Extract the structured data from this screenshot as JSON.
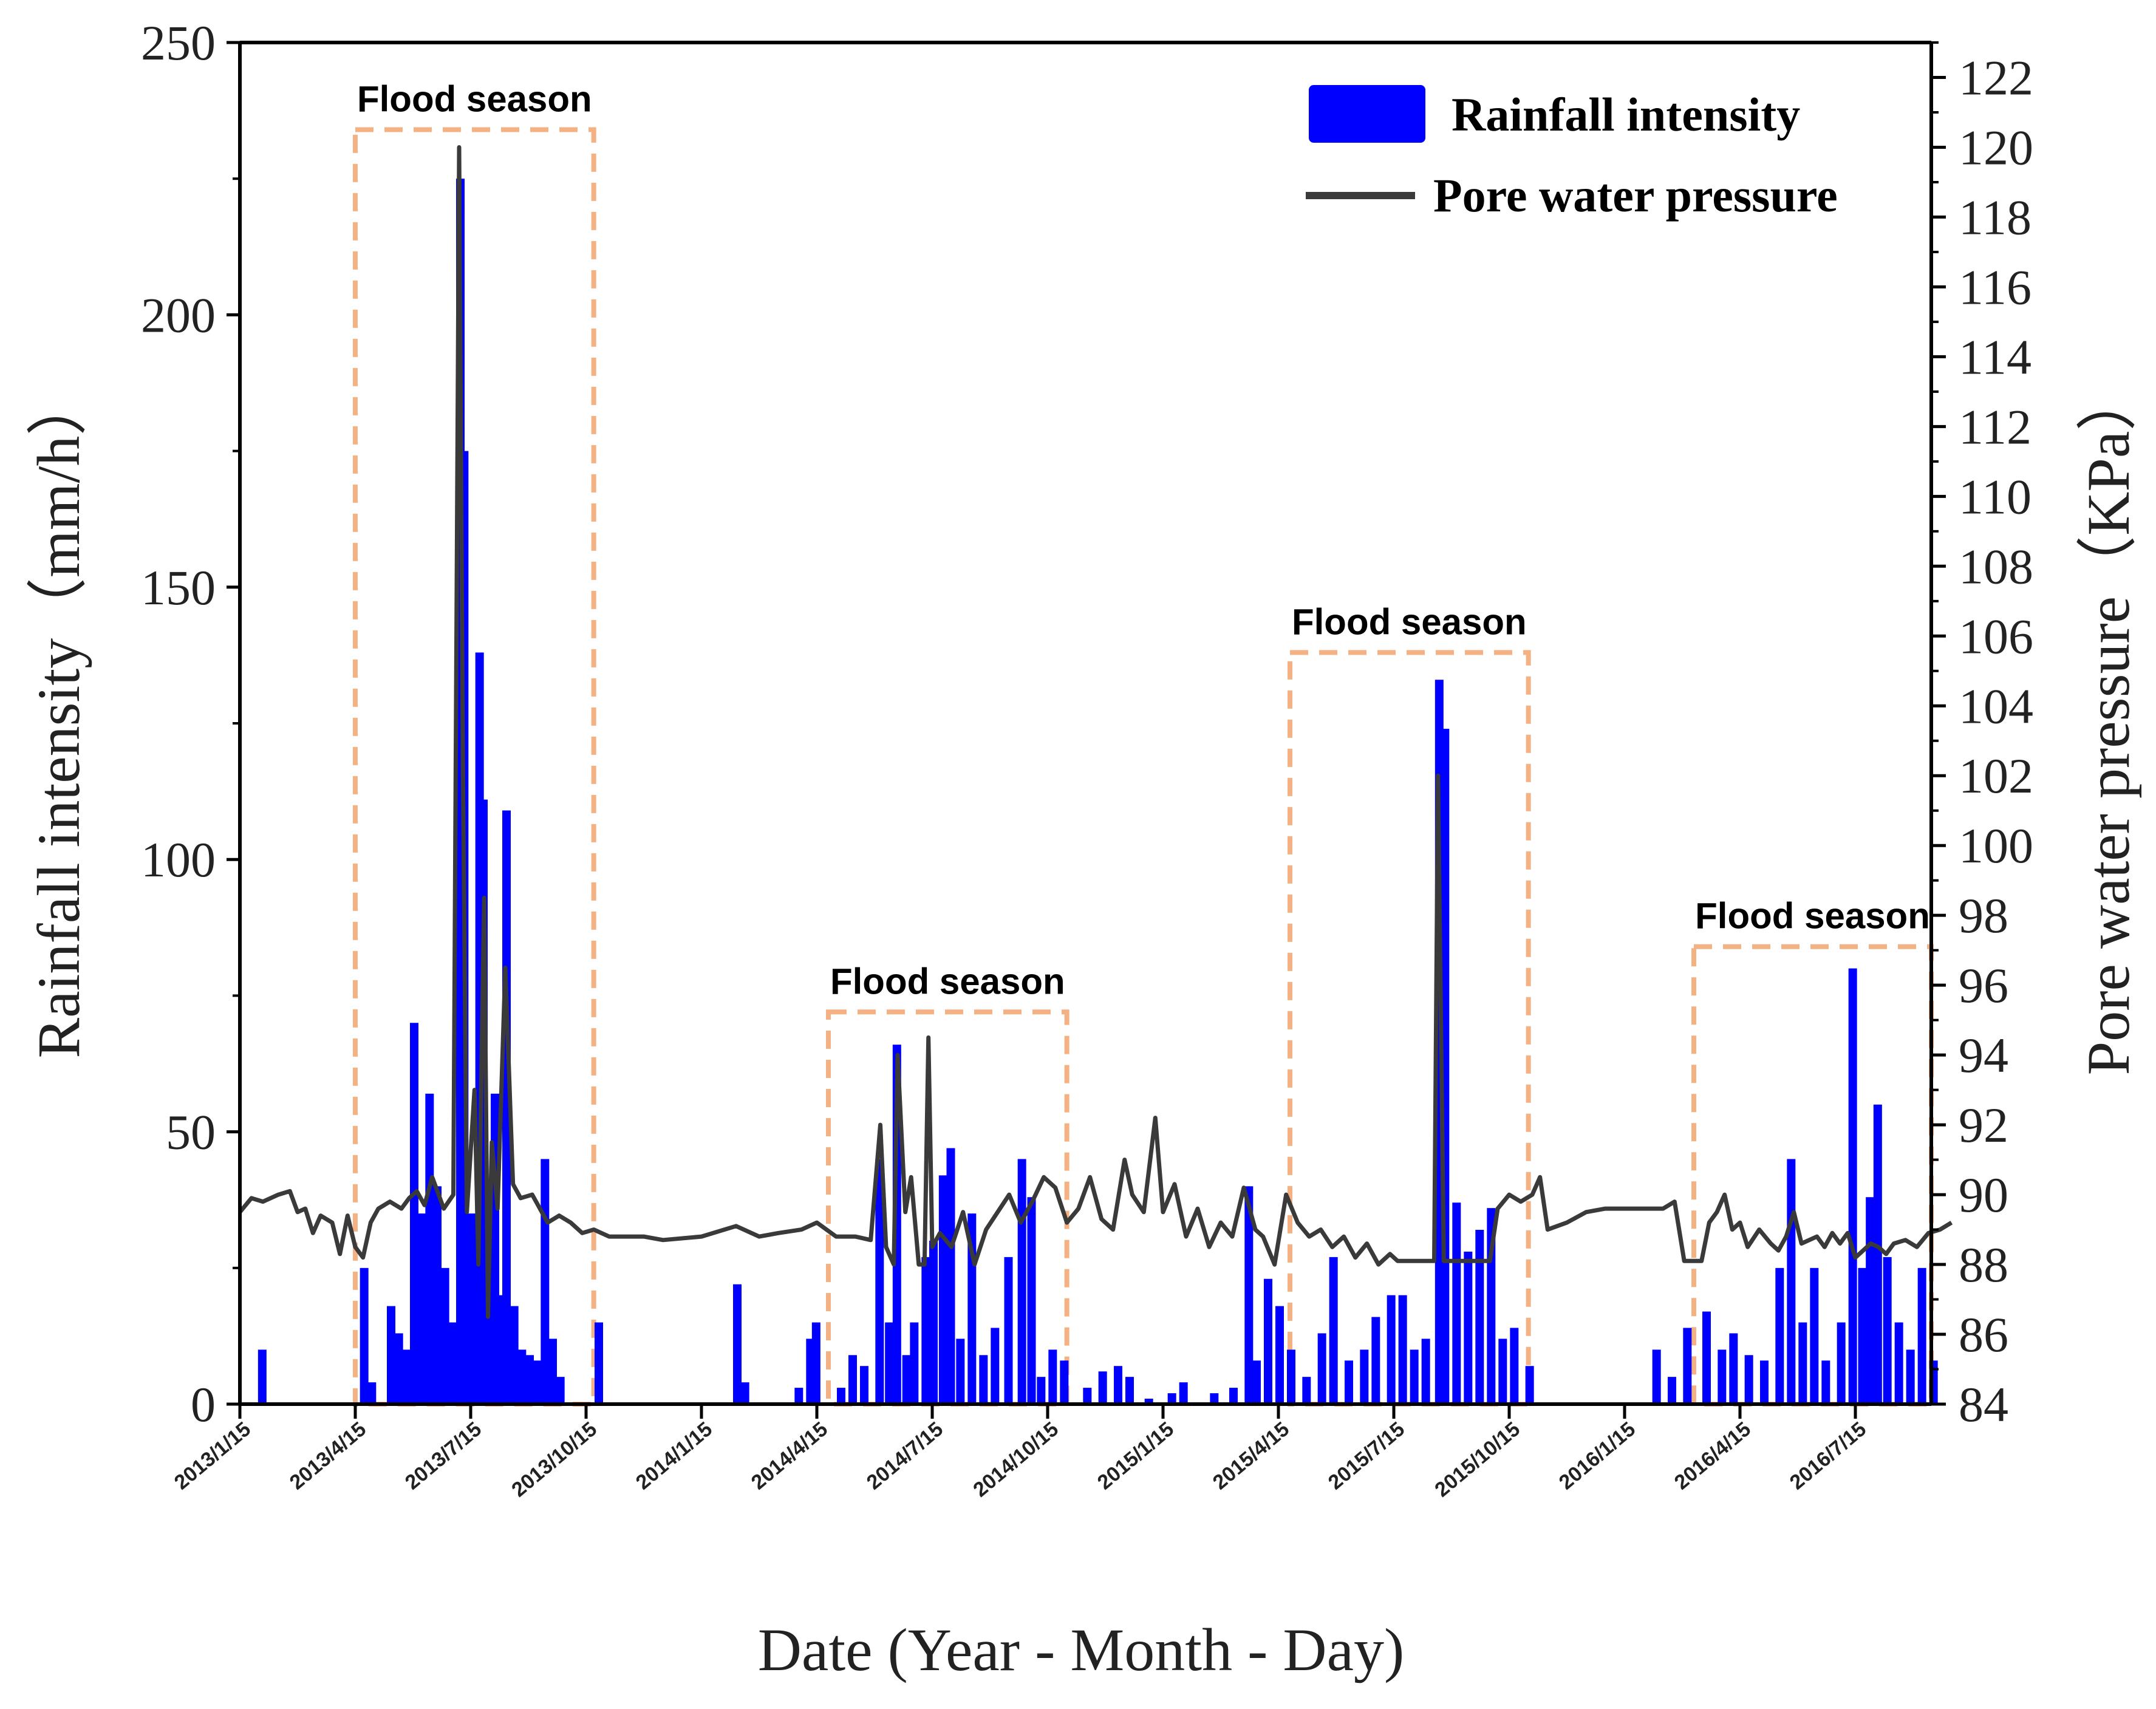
{
  "chart_data": {
    "type": "bar",
    "title": "",
    "xlabel": "Date (Year - Month - Day)",
    "ylabel": "Rainfall intensity（mm/h）",
    "y2label": "Pore water pressure（KPa）",
    "x_tick_labels": [
      "2013/1/15",
      "2013/4/15",
      "2013/7/15",
      "2013/10/15",
      "2014/1/15",
      "2014/4/15",
      "2014/7/15",
      "2014/10/15",
      "2015/1/15",
      "2015/4/15",
      "2015/7/15",
      "2015/10/15",
      "2016/1/15",
      "2016/4/15",
      "2016/7/15"
    ],
    "x_range_months": [
      0,
      44.5
    ],
    "ylim": [
      0,
      250
    ],
    "y_ticks": [
      0,
      50,
      100,
      150,
      200,
      250
    ],
    "y2lim": [
      84,
      123
    ],
    "y2_ticks": [
      84,
      86,
      88,
      90,
      92,
      94,
      96,
      98,
      100,
      102,
      104,
      106,
      108,
      110,
      112,
      114,
      116,
      118,
      120,
      122
    ],
    "legend": {
      "position": "top-right",
      "entries": [
        {
          "label": "Rainfall intensity",
          "kind": "bar",
          "color": "#0000ff"
        },
        {
          "label": "Pore water pressure",
          "kind": "line",
          "color": "#3a3a3a"
        }
      ]
    },
    "flood_seasons": [
      {
        "label": "Flood season",
        "start_month": 3.0,
        "end_month": 9.2,
        "top_value": 234
      },
      {
        "label": "Flood season",
        "start_month": 15.3,
        "end_month": 21.5,
        "top_value": 72
      },
      {
        "label": "Flood season",
        "start_month": 27.3,
        "end_month": 33.5,
        "top_value": 138
      },
      {
        "label": "Flood season",
        "start_month": 37.8,
        "end_month": 44.5,
        "top_value": 84
      }
    ],
    "colors": {
      "rain": "#0000ff",
      "pressure": "#3a3a3a",
      "flood_box": "#f4b183",
      "axis": "#000000"
    },
    "series": [
      {
        "name": "Rainfall intensity",
        "unit": "mm/h",
        "points": [
          [
            0.55,
            10
          ],
          [
            3.2,
            25
          ],
          [
            3.4,
            4
          ],
          [
            3.9,
            18
          ],
          [
            4.1,
            13
          ],
          [
            4.3,
            10
          ],
          [
            4.5,
            70
          ],
          [
            4.7,
            35
          ],
          [
            4.9,
            57
          ],
          [
            5.1,
            40
          ],
          [
            5.3,
            25
          ],
          [
            5.5,
            15
          ],
          [
            5.7,
            225
          ],
          [
            5.8,
            175
          ],
          [
            6.0,
            35
          ],
          [
            6.2,
            138
          ],
          [
            6.3,
            111
          ],
          [
            6.45,
            25
          ],
          [
            6.6,
            57
          ],
          [
            6.8,
            20
          ],
          [
            6.9,
            109
          ],
          [
            7.1,
            18
          ],
          [
            7.3,
            10
          ],
          [
            7.5,
            9
          ],
          [
            7.7,
            8
          ],
          [
            7.9,
            45
          ],
          [
            8.1,
            12
          ],
          [
            8.3,
            5
          ],
          [
            9.3,
            15
          ],
          [
            12.9,
            22
          ],
          [
            13.1,
            4
          ],
          [
            14.5,
            3
          ],
          [
            14.8,
            12
          ],
          [
            14.95,
            15
          ],
          [
            15.6,
            3
          ],
          [
            15.9,
            9
          ],
          [
            16.2,
            7
          ],
          [
            16.6,
            45
          ],
          [
            16.85,
            15
          ],
          [
            17.05,
            66
          ],
          [
            17.3,
            9
          ],
          [
            17.5,
            15
          ],
          [
            17.8,
            27
          ],
          [
            18.0,
            30
          ],
          [
            18.25,
            42
          ],
          [
            18.45,
            47
          ],
          [
            18.7,
            12
          ],
          [
            19.0,
            35
          ],
          [
            19.3,
            9
          ],
          [
            19.6,
            14
          ],
          [
            19.95,
            27
          ],
          [
            20.3,
            45
          ],
          [
            20.55,
            38
          ],
          [
            20.8,
            5
          ],
          [
            21.1,
            10
          ],
          [
            21.4,
            8
          ],
          [
            22.0,
            3
          ],
          [
            22.4,
            6
          ],
          [
            22.8,
            7
          ],
          [
            23.1,
            5
          ],
          [
            23.6,
            1
          ],
          [
            24.2,
            2
          ],
          [
            24.5,
            4
          ],
          [
            25.3,
            2
          ],
          [
            25.8,
            3
          ],
          [
            26.2,
            40
          ],
          [
            26.4,
            8
          ],
          [
            26.7,
            23
          ],
          [
            27.0,
            18
          ],
          [
            27.3,
            10
          ],
          [
            27.7,
            5
          ],
          [
            28.1,
            13
          ],
          [
            28.4,
            27
          ],
          [
            28.8,
            8
          ],
          [
            29.2,
            10
          ],
          [
            29.5,
            16
          ],
          [
            29.9,
            20
          ],
          [
            30.2,
            20
          ],
          [
            30.5,
            10
          ],
          [
            30.8,
            12
          ],
          [
            31.15,
            133
          ],
          [
            31.3,
            124
          ],
          [
            31.6,
            37
          ],
          [
            31.9,
            28
          ],
          [
            32.2,
            32
          ],
          [
            32.5,
            36
          ],
          [
            32.8,
            12
          ],
          [
            33.1,
            14
          ],
          [
            33.5,
            7
          ],
          [
            36.8,
            10
          ],
          [
            37.2,
            5
          ],
          [
            37.6,
            14
          ],
          [
            38.1,
            17
          ],
          [
            38.5,
            10
          ],
          [
            38.8,
            13
          ],
          [
            39.2,
            9
          ],
          [
            39.6,
            8
          ],
          [
            40.0,
            25
          ],
          [
            40.3,
            45
          ],
          [
            40.6,
            15
          ],
          [
            40.9,
            25
          ],
          [
            41.2,
            8
          ],
          [
            41.6,
            15
          ],
          [
            41.9,
            80
          ],
          [
            42.15,
            25
          ],
          [
            42.35,
            38
          ],
          [
            42.55,
            55
          ],
          [
            42.8,
            27
          ],
          [
            43.1,
            15
          ],
          [
            43.4,
            10
          ],
          [
            43.7,
            25
          ],
          [
            44.0,
            8
          ]
        ]
      },
      {
        "name": "Pore water pressure",
        "unit": "KPa",
        "points": [
          [
            0.0,
            89.5
          ],
          [
            0.3,
            89.9
          ],
          [
            0.6,
            89.8
          ],
          [
            1.0,
            90.0
          ],
          [
            1.3,
            90.1
          ],
          [
            1.5,
            89.5
          ],
          [
            1.7,
            89.6
          ],
          [
            1.9,
            88.9
          ],
          [
            2.1,
            89.4
          ],
          [
            2.4,
            89.2
          ],
          [
            2.6,
            88.3
          ],
          [
            2.8,
            89.4
          ],
          [
            3.0,
            88.5
          ],
          [
            3.2,
            88.2
          ],
          [
            3.4,
            89.2
          ],
          [
            3.6,
            89.6
          ],
          [
            3.9,
            89.8
          ],
          [
            4.2,
            89.6
          ],
          [
            4.4,
            89.9
          ],
          [
            4.6,
            90.1
          ],
          [
            4.8,
            89.7
          ],
          [
            5.0,
            90.5
          ],
          [
            5.3,
            89.6
          ],
          [
            5.55,
            90.0
          ],
          [
            5.7,
            120.0
          ],
          [
            5.8,
            102.0
          ],
          [
            5.9,
            89.5
          ],
          [
            6.1,
            93.0
          ],
          [
            6.2,
            88.0
          ],
          [
            6.35,
            98.5
          ],
          [
            6.45,
            86.5
          ],
          [
            6.55,
            91.5
          ],
          [
            6.7,
            89.6
          ],
          [
            6.9,
            96.5
          ],
          [
            7.1,
            90.3
          ],
          [
            7.3,
            89.9
          ],
          [
            7.6,
            90.0
          ],
          [
            7.8,
            89.6
          ],
          [
            8.0,
            89.2
          ],
          [
            8.3,
            89.4
          ],
          [
            8.6,
            89.2
          ],
          [
            8.9,
            88.9
          ],
          [
            9.2,
            89.0
          ],
          [
            9.6,
            88.8
          ],
          [
            10.5,
            88.8
          ],
          [
            11.0,
            88.7
          ],
          [
            12.0,
            88.8
          ],
          [
            12.9,
            89.1
          ],
          [
            13.5,
            88.8
          ],
          [
            14.0,
            88.9
          ],
          [
            14.6,
            89.0
          ],
          [
            15.0,
            89.2
          ],
          [
            15.5,
            88.8
          ],
          [
            16.0,
            88.8
          ],
          [
            16.4,
            88.7
          ],
          [
            16.65,
            92.0
          ],
          [
            16.8,
            88.5
          ],
          [
            17.0,
            88.0
          ],
          [
            17.1,
            94.0
          ],
          [
            17.3,
            89.5
          ],
          [
            17.45,
            90.5
          ],
          [
            17.65,
            88.0
          ],
          [
            17.8,
            88.0
          ],
          [
            17.9,
            94.5
          ],
          [
            18.0,
            88.5
          ],
          [
            18.2,
            88.9
          ],
          [
            18.5,
            88.5
          ],
          [
            18.8,
            89.5
          ],
          [
            19.1,
            88.0
          ],
          [
            19.4,
            89.0
          ],
          [
            19.7,
            89.5
          ],
          [
            20.0,
            90.0
          ],
          [
            20.3,
            89.2
          ],
          [
            20.6,
            89.8
          ],
          [
            20.9,
            90.5
          ],
          [
            21.2,
            90.2
          ],
          [
            21.5,
            89.2
          ],
          [
            21.8,
            89.6
          ],
          [
            22.1,
            90.5
          ],
          [
            22.4,
            89.3
          ],
          [
            22.7,
            89.0
          ],
          [
            23.0,
            91.0
          ],
          [
            23.2,
            90.0
          ],
          [
            23.5,
            89.5
          ],
          [
            23.8,
            92.2
          ],
          [
            24.0,
            89.5
          ],
          [
            24.3,
            90.3
          ],
          [
            24.6,
            88.8
          ],
          [
            24.9,
            89.6
          ],
          [
            25.2,
            88.5
          ],
          [
            25.5,
            89.2
          ],
          [
            25.8,
            88.8
          ],
          [
            26.1,
            90.2
          ],
          [
            26.4,
            89.0
          ],
          [
            26.6,
            88.8
          ],
          [
            26.9,
            88.0
          ],
          [
            27.2,
            90.0
          ],
          [
            27.5,
            89.2
          ],
          [
            27.8,
            88.8
          ],
          [
            28.1,
            89.0
          ],
          [
            28.4,
            88.5
          ],
          [
            28.7,
            88.8
          ],
          [
            29.0,
            88.2
          ],
          [
            29.3,
            88.6
          ],
          [
            29.6,
            88.0
          ],
          [
            29.9,
            88.3
          ],
          [
            30.1,
            88.1
          ],
          [
            30.2,
            88.1
          ],
          [
            30.45,
            88.1
          ],
          [
            30.65,
            88.1
          ],
          [
            30.8,
            88.1
          ],
          [
            31.05,
            88.1
          ],
          [
            31.15,
            102.0
          ],
          [
            31.3,
            88.1
          ],
          [
            31.5,
            88.1
          ],
          [
            31.7,
            88.1
          ],
          [
            31.9,
            88.1
          ],
          [
            32.3,
            88.1
          ],
          [
            32.5,
            88.1
          ],
          [
            32.7,
            89.6
          ],
          [
            33.0,
            90.0
          ],
          [
            33.3,
            89.8
          ],
          [
            33.6,
            90.0
          ],
          [
            33.8,
            90.5
          ],
          [
            34.0,
            89.0
          ],
          [
            34.5,
            89.2
          ],
          [
            35.0,
            89.5
          ],
          [
            35.5,
            89.6
          ],
          [
            36.0,
            89.6
          ],
          [
            36.5,
            89.6
          ],
          [
            37.0,
            89.6
          ],
          [
            37.3,
            89.8
          ],
          [
            37.55,
            88.1
          ],
          [
            37.8,
            88.1
          ],
          [
            38.0,
            88.1
          ],
          [
            38.2,
            89.2
          ],
          [
            38.4,
            89.5
          ],
          [
            38.6,
            90.0
          ],
          [
            38.8,
            89.0
          ],
          [
            39.0,
            89.2
          ],
          [
            39.2,
            88.5
          ],
          [
            39.5,
            89.0
          ],
          [
            39.8,
            88.6
          ],
          [
            40.0,
            88.4
          ],
          [
            40.2,
            88.8
          ],
          [
            40.4,
            89.5
          ],
          [
            40.6,
            88.6
          ],
          [
            40.8,
            88.7
          ],
          [
            41.0,
            88.8
          ],
          [
            41.2,
            88.5
          ],
          [
            41.4,
            88.9
          ],
          [
            41.6,
            88.6
          ],
          [
            41.8,
            88.9
          ],
          [
            42.0,
            88.2
          ],
          [
            42.2,
            88.4
          ],
          [
            42.4,
            88.6
          ],
          [
            42.6,
            88.5
          ],
          [
            42.8,
            88.3
          ],
          [
            43.0,
            88.6
          ],
          [
            43.3,
            88.7
          ],
          [
            43.6,
            88.5
          ],
          [
            43.9,
            88.9
          ],
          [
            44.2,
            89.0
          ],
          [
            44.5,
            89.2
          ]
        ]
      }
    ]
  }
}
